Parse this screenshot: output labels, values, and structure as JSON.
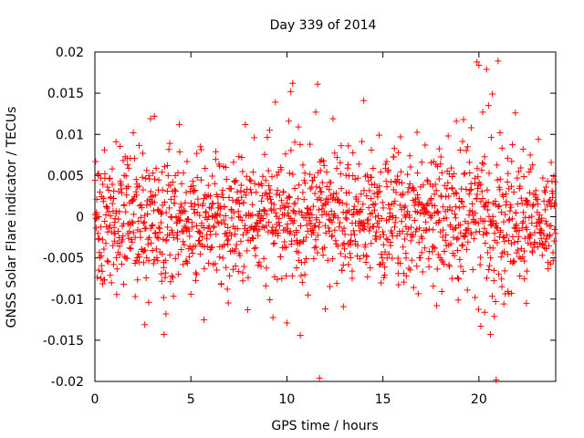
{
  "chart_data": {
    "type": "scatter",
    "title": "Day 339 of 2014",
    "xlabel": "GPS time / hours",
    "ylabel": "GNSS Solar Flare indicator / TECUs",
    "xlim": [
      0,
      24
    ],
    "ylim": [
      -0.02,
      0.02
    ],
    "x_ticks": [
      0,
      5,
      10,
      15,
      20
    ],
    "x_tick_labels": [
      "0",
      "5",
      "10",
      "15",
      "20"
    ],
    "y_ticks": [
      -0.02,
      -0.015,
      -0.01,
      -0.005,
      0,
      0.005,
      0.01,
      0.015,
      0.02
    ],
    "y_tick_labels": [
      "-0.02",
      "-0.015",
      "-0.01",
      "-0.005",
      "0",
      "0.005",
      "0.01",
      "0.015",
      "0.02"
    ],
    "grid": false,
    "marker": "+",
    "series": [
      {
        "name": "Solar flare indicator",
        "color": "#ff0000",
        "points": [
          [
            0.1,
            0.0021
          ],
          [
            0.2,
            -0.0065
          ],
          [
            0.3,
            0.0047
          ],
          [
            0.4,
            -0.0028
          ],
          [
            0.5,
            0.0081
          ],
          [
            0.6,
            0.0012
          ],
          [
            0.8,
            -0.0071
          ],
          [
            0.9,
            0.0058
          ],
          [
            1.0,
            -0.0013
          ],
          [
            1.1,
            0.0091
          ],
          [
            1.3,
            -0.0046
          ],
          [
            1.4,
            0.0029
          ],
          [
            1.5,
            -0.0082
          ],
          [
            1.7,
            0.0063
          ],
          [
            1.8,
            -0.0018
          ],
          [
            2.0,
            0.0102
          ],
          [
            2.1,
            -0.0097
          ],
          [
            2.2,
            0.0036
          ],
          [
            2.3,
            -0.0055
          ],
          [
            2.5,
            0.0077
          ],
          [
            2.6,
            -0.0131
          ],
          [
            2.7,
            0.0014
          ],
          [
            2.8,
            -0.0104
          ],
          [
            2.9,
            0.0119
          ],
          [
            3.0,
            -0.0041
          ],
          [
            3.1,
            0.0122
          ],
          [
            3.3,
            -0.0026
          ],
          [
            3.5,
            0.0054
          ],
          [
            3.6,
            -0.0143
          ],
          [
            3.7,
            -0.0118
          ],
          [
            3.9,
            0.0089
          ],
          [
            4.0,
            -0.0072
          ],
          [
            4.2,
            0.0031
          ],
          [
            4.3,
            -0.0019
          ],
          [
            4.4,
            0.0112
          ],
          [
            4.6,
            -0.0058
          ],
          [
            4.8,
            0.0067
          ],
          [
            5.0,
            -0.0094
          ],
          [
            5.1,
            0.0043
          ],
          [
            5.3,
            -0.0011
          ],
          [
            5.5,
            0.0085
          ],
          [
            5.7,
            -0.0063
          ],
          [
            5.9,
            0.0026
          ],
          [
            6.1,
            -0.0037
          ],
          [
            6.3,
            0.0079
          ],
          [
            6.5,
            -0.0049
          ],
          [
            6.7,
            0.0061
          ],
          [
            6.9,
            -0.0088
          ],
          [
            7.1,
            0.0034
          ],
          [
            7.3,
            -0.0021
          ],
          [
            7.5,
            0.0073
          ],
          [
            7.7,
            -0.0068
          ],
          [
            7.9,
            0.0049
          ],
          [
            8.1,
            -0.0029
          ],
          [
            8.3,
            0.0096
          ],
          [
            8.5,
            -0.0059
          ],
          [
            8.7,
            0.0038
          ],
          [
            8.9,
            -0.0084
          ],
          [
            9.1,
            0.0105
          ],
          [
            9.3,
            -0.0033
          ],
          [
            9.4,
            0.0139
          ],
          [
            9.5,
            -0.0076
          ],
          [
            9.7,
            0.0057
          ],
          [
            9.9,
            -0.0016
          ],
          [
            10.0,
            -0.0129
          ],
          [
            10.1,
            0.0116
          ],
          [
            10.2,
            0.0152
          ],
          [
            10.3,
            0.0162
          ],
          [
            10.5,
            -0.0062
          ],
          [
            10.6,
            0.0109
          ],
          [
            10.7,
            -0.0144
          ],
          [
            10.9,
            0.0044
          ],
          [
            11.1,
            -0.0095
          ],
          [
            11.2,
            0.0088
          ],
          [
            11.4,
            -0.0051
          ],
          [
            11.5,
            0.0127
          ],
          [
            11.6,
            0.0161
          ],
          [
            11.7,
            -0.0196
          ],
          [
            11.8,
            0.0069
          ],
          [
            12.0,
            -0.0112
          ],
          [
            12.2,
            0.0033
          ],
          [
            12.4,
            0.0119
          ],
          [
            12.6,
            -0.0081
          ],
          [
            12.8,
            0.0052
          ],
          [
            13.0,
            -0.0039
          ],
          [
            13.2,
            0.0086
          ],
          [
            13.4,
            -0.0066
          ],
          [
            13.6,
            0.0024
          ],
          [
            13.8,
            -0.0017
          ],
          [
            14.0,
            0.0141
          ],
          [
            14.2,
            -0.0073
          ],
          [
            14.4,
            0.0048
          ],
          [
            14.6,
            -0.0027
          ],
          [
            14.8,
            0.0099
          ],
          [
            15.0,
            -0.0056
          ],
          [
            15.2,
            0.0067
          ],
          [
            15.4,
            -0.0035
          ],
          [
            15.6,
            0.0083
          ],
          [
            15.8,
            -0.0069
          ],
          [
            16.0,
            0.0041
          ],
          [
            16.2,
            -0.0012
          ],
          [
            16.4,
            0.0074
          ],
          [
            16.6,
            -0.0086
          ],
          [
            16.8,
            0.0053
          ],
          [
            17.0,
            -0.0024
          ],
          [
            17.2,
            0.0087
          ],
          [
            17.4,
            -0.0061
          ],
          [
            17.6,
            0.0037
          ],
          [
            17.8,
            -0.0108
          ],
          [
            18.0,
            0.0064
          ],
          [
            18.2,
            -0.0042
          ],
          [
            18.4,
            0.0098
          ],
          [
            18.6,
            -0.0075
          ],
          [
            18.8,
            0.0029
          ],
          [
            19.0,
            -0.0052
          ],
          [
            19.2,
            0.0118
          ],
          [
            19.4,
            -0.0089
          ],
          [
            19.6,
            0.0108
          ],
          [
            19.8,
            -0.0098
          ],
          [
            19.9,
            0.0188
          ],
          [
            20.0,
            0.0184
          ],
          [
            20.1,
            -0.0133
          ],
          [
            20.2,
            0.0127
          ],
          [
            20.3,
            -0.0116
          ],
          [
            20.4,
            0.0179
          ],
          [
            20.5,
            0.0135
          ],
          [
            20.6,
            -0.0143
          ],
          [
            20.7,
            0.0149
          ],
          [
            20.8,
            -0.0121
          ],
          [
            20.9,
            -0.0198
          ],
          [
            21.0,
            0.0189
          ],
          [
            21.1,
            0.0102
          ],
          [
            21.2,
            -0.0085
          ],
          [
            21.3,
            -0.0106
          ],
          [
            21.5,
            0.0071
          ],
          [
            21.7,
            -0.0093
          ],
          [
            21.9,
            0.0126
          ],
          [
            22.1,
            -0.0049
          ],
          [
            22.3,
            0.0082
          ],
          [
            22.5,
            -0.0066
          ],
          [
            22.7,
            0.0058
          ],
          [
            22.9,
            -0.0031
          ],
          [
            23.1,
            0.0094
          ],
          [
            23.3,
            -0.0047
          ],
          [
            23.5,
            0.0036
          ],
          [
            23.7,
            -0.0022
          ],
          [
            23.9,
            0.0049
          ]
        ]
      }
    ],
    "band": {
      "description": "dense continuous sampling across the day",
      "x_start": 0,
      "x_end": 24,
      "x_step": 0.0333,
      "typical_amplitude": 0.006
    }
  }
}
